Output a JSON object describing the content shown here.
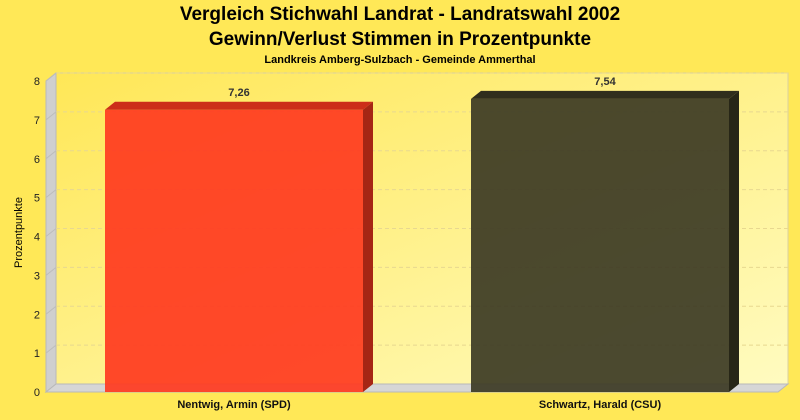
{
  "chart_data": {
    "type": "bar",
    "title": "Vergleich Stichwahl Landrat - Landratswahl 2002",
    "subtitle_line": "Gewinn/Verlust Stimmen in Prozentpunkte",
    "subtitle": "Landkreis Amberg-Sulzbach - Gemeinde Ammerthal",
    "xlabel": "",
    "ylabel": "Prozentpunkte",
    "ylim": [
      0,
      8
    ],
    "yticks": [
      "0",
      "1",
      "2",
      "3",
      "4",
      "5",
      "6",
      "7",
      "8"
    ],
    "categories": [
      "Nentwig, Armin (SPD)",
      "Schwartz, Harald (CSU)"
    ],
    "values": [
      7.26,
      7.54
    ],
    "value_labels": [
      "7,26",
      "7,54"
    ],
    "colors": [
      "#ff3a1f",
      "#3c3a24"
    ],
    "grid": true,
    "legend": "none"
  }
}
